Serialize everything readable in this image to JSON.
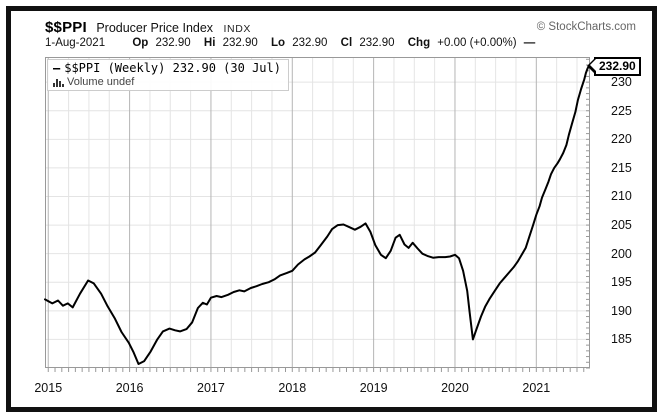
{
  "header": {
    "symbol": "$$PPI",
    "name": "Producer Price Index",
    "exchange": "INDX",
    "copyright": "© StockCharts.com",
    "date": "1-Aug-2021",
    "quote": {
      "op_label": "Op",
      "op": "232.90",
      "hi_label": "Hi",
      "hi": "232.90",
      "lo_label": "Lo",
      "lo": "232.90",
      "cl_label": "Cl",
      "cl": "232.90",
      "chg_label": "Chg",
      "chg": "+0.00 (+0.00%)",
      "line_swatch": "—"
    }
  },
  "legend": {
    "swatch": "—",
    "label": "$$PPI (Weekly) 232.90 (30 Jul)",
    "volume_label": "Volume undef"
  },
  "price_tag": "232.90",
  "colors": {
    "line": "#000000",
    "grid_minor": "#e4e4e4",
    "grid_year": "#b5b5b5",
    "plot_border": "#999999",
    "copyright_gray": "#666666"
  },
  "chart_data": {
    "type": "line",
    "title": "$$PPI Producer Price Index (Weekly)",
    "xlabel": "",
    "ylabel": "",
    "legend_position": "top-left",
    "grid": true,
    "x_range": [
      2014.96,
      2021.66
    ],
    "y_range": [
      180.0,
      234.4
    ],
    "x_ticks": [
      2015,
      2016,
      2017,
      2018,
      2019,
      2020,
      2021
    ],
    "x_tick_labels": [
      "2015",
      "2016",
      "2017",
      "2018",
      "2019",
      "2020",
      "2021"
    ],
    "y_ticks": [
      185,
      190,
      195,
      200,
      205,
      210,
      215,
      220,
      225,
      230
    ],
    "last_price": 232.9,
    "last_date": "30 Jul",
    "series": [
      {
        "name": "$$PPI Weekly close",
        "points": [
          [
            2014.96,
            192.0
          ],
          [
            2015.05,
            191.3
          ],
          [
            2015.12,
            191.8
          ],
          [
            2015.18,
            190.9
          ],
          [
            2015.24,
            191.3
          ],
          [
            2015.3,
            190.6
          ],
          [
            2015.39,
            193.0
          ],
          [
            2015.49,
            195.3
          ],
          [
            2015.56,
            194.8
          ],
          [
            2015.65,
            193.0
          ],
          [
            2015.73,
            190.8
          ],
          [
            2015.82,
            188.6
          ],
          [
            2015.9,
            186.3
          ],
          [
            2015.99,
            184.4
          ],
          [
            2016.05,
            182.7
          ],
          [
            2016.11,
            180.7
          ],
          [
            2016.18,
            181.2
          ],
          [
            2016.26,
            182.9
          ],
          [
            2016.34,
            185.0
          ],
          [
            2016.41,
            186.4
          ],
          [
            2016.49,
            186.9
          ],
          [
            2016.56,
            186.6
          ],
          [
            2016.62,
            186.4
          ],
          [
            2016.7,
            186.8
          ],
          [
            2016.77,
            188.0
          ],
          [
            2016.84,
            190.5
          ],
          [
            2016.9,
            191.4
          ],
          [
            2016.95,
            191.1
          ],
          [
            2017.0,
            192.3
          ],
          [
            2017.07,
            192.6
          ],
          [
            2017.13,
            192.4
          ],
          [
            2017.21,
            192.8
          ],
          [
            2017.28,
            193.3
          ],
          [
            2017.35,
            193.6
          ],
          [
            2017.41,
            193.4
          ],
          [
            2017.49,
            194.0
          ],
          [
            2017.56,
            194.3
          ],
          [
            2017.63,
            194.7
          ],
          [
            2017.71,
            195.0
          ],
          [
            2017.78,
            195.5
          ],
          [
            2017.85,
            196.2
          ],
          [
            2017.93,
            196.6
          ],
          [
            2018.0,
            197.0
          ],
          [
            2018.07,
            198.1
          ],
          [
            2018.15,
            199.0
          ],
          [
            2018.21,
            199.5
          ],
          [
            2018.28,
            200.2
          ],
          [
            2018.35,
            201.5
          ],
          [
            2018.43,
            203.0
          ],
          [
            2018.49,
            204.3
          ],
          [
            2018.56,
            205.0
          ],
          [
            2018.63,
            205.1
          ],
          [
            2018.71,
            204.6
          ],
          [
            2018.77,
            204.2
          ],
          [
            2018.84,
            204.7
          ],
          [
            2018.9,
            205.3
          ],
          [
            2018.96,
            203.8
          ],
          [
            2019.02,
            201.5
          ],
          [
            2019.09,
            199.8
          ],
          [
            2019.15,
            199.2
          ],
          [
            2019.21,
            200.5
          ],
          [
            2019.27,
            202.8
          ],
          [
            2019.32,
            203.3
          ],
          [
            2019.38,
            201.6
          ],
          [
            2019.43,
            201.0
          ],
          [
            2019.48,
            201.9
          ],
          [
            2019.54,
            200.9
          ],
          [
            2019.6,
            200.0
          ],
          [
            2019.66,
            199.6
          ],
          [
            2019.73,
            199.3
          ],
          [
            2019.8,
            199.4
          ],
          [
            2019.88,
            199.4
          ],
          [
            2019.94,
            199.5
          ],
          [
            2020.0,
            199.8
          ],
          [
            2020.05,
            199.2
          ],
          [
            2020.1,
            197.0
          ],
          [
            2020.15,
            193.5
          ],
          [
            2020.18,
            189.8
          ],
          [
            2020.22,
            185.0
          ],
          [
            2020.27,
            187.0
          ],
          [
            2020.32,
            189.0
          ],
          [
            2020.37,
            190.7
          ],
          [
            2020.43,
            192.2
          ],
          [
            2020.49,
            193.5
          ],
          [
            2020.55,
            194.8
          ],
          [
            2020.61,
            195.8
          ],
          [
            2020.67,
            196.8
          ],
          [
            2020.72,
            197.6
          ],
          [
            2020.77,
            198.6
          ],
          [
            2020.82,
            199.8
          ],
          [
            2020.87,
            201.0
          ],
          [
            2020.91,
            202.8
          ],
          [
            2020.96,
            205.0
          ],
          [
            2021.0,
            206.8
          ],
          [
            2021.04,
            208.3
          ],
          [
            2021.07,
            209.8
          ],
          [
            2021.11,
            211.2
          ],
          [
            2021.15,
            212.6
          ],
          [
            2021.18,
            213.9
          ],
          [
            2021.22,
            215.0
          ],
          [
            2021.26,
            215.8
          ],
          [
            2021.29,
            216.5
          ],
          [
            2021.33,
            217.6
          ],
          [
            2021.37,
            219.0
          ],
          [
            2021.4,
            220.8
          ],
          [
            2021.44,
            222.8
          ],
          [
            2021.48,
            224.8
          ],
          [
            2021.51,
            226.8
          ],
          [
            2021.55,
            228.8
          ],
          [
            2021.59,
            230.5
          ],
          [
            2021.61,
            231.6
          ],
          [
            2021.63,
            232.4
          ],
          [
            2021.65,
            232.9
          ]
        ]
      }
    ]
  }
}
